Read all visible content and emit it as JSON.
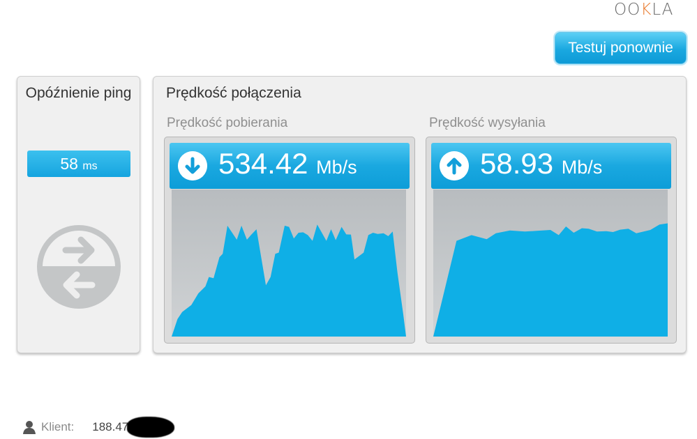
{
  "logo": {
    "text": "OOKLA"
  },
  "retest_button": "Testuj ponownie",
  "ping": {
    "title": "Opóźnienie ping",
    "value": "58",
    "unit": "ms"
  },
  "speed": {
    "title": "Prędkość połączenia",
    "download": {
      "label": "Prędkość pobierania",
      "value": "534.42",
      "unit": "Mb/s",
      "icon": "arrow-down-circle-icon",
      "graph_samples": [
        [
          0,
          0
        ],
        [
          2.5,
          11.9
        ],
        [
          4.5,
          16.7
        ],
        [
          8.4,
          21.4
        ],
        [
          11.4,
          29.4
        ],
        [
          14.4,
          34.1
        ],
        [
          15.9,
          40.5
        ],
        [
          17.9,
          39.7
        ],
        [
          20.4,
          54
        ],
        [
          21.8,
          56.3
        ],
        [
          23.8,
          75.4
        ],
        [
          27.8,
          65.9
        ],
        [
          29.8,
          75.4
        ],
        [
          32.1,
          65.9
        ],
        [
          33.8,
          69
        ],
        [
          36.2,
          73
        ],
        [
          40.2,
          34.9
        ],
        [
          42.2,
          40.5
        ],
        [
          44.2,
          56.3
        ],
        [
          45.7,
          57.1
        ],
        [
          48.2,
          75.4
        ],
        [
          50.1,
          74.6
        ],
        [
          52.1,
          66.7
        ],
        [
          54.1,
          70.6
        ],
        [
          56.1,
          70.9
        ],
        [
          58.1,
          69
        ],
        [
          60.1,
          65.1
        ],
        [
          62.1,
          76.2
        ],
        [
          66,
          65.1
        ],
        [
          68,
          73
        ],
        [
          70,
          65.6
        ],
        [
          72.5,
          74.6
        ],
        [
          74.5,
          69.5
        ],
        [
          76.5,
          69.4
        ],
        [
          78,
          52.4
        ],
        [
          81.9,
          57.1
        ],
        [
          83.9,
          69
        ],
        [
          85.9,
          70.6
        ],
        [
          87.9,
          69.8
        ],
        [
          90.4,
          70.3
        ],
        [
          92.4,
          68.3
        ],
        [
          94.3,
          71.4
        ],
        [
          96.3,
          43.7
        ],
        [
          98.8,
          15.1
        ],
        [
          100,
          0
        ]
      ]
    },
    "upload": {
      "label": "Prędkość wysyłania",
      "value": "58.93",
      "unit": "Mb/s",
      "icon": "arrow-up-circle-icon",
      "graph_samples": [
        [
          0,
          0
        ],
        [
          9.9,
          65.1
        ],
        [
          16.3,
          69
        ],
        [
          22.8,
          66.2
        ],
        [
          26.7,
          70.3
        ],
        [
          32.7,
          72.2
        ],
        [
          39.1,
          71.4
        ],
        [
          44.1,
          71.9
        ],
        [
          50,
          72.5
        ],
        [
          53.5,
          69
        ],
        [
          56.6,
          74.9
        ],
        [
          59.9,
          70.6
        ],
        [
          63.4,
          73.7
        ],
        [
          66.3,
          73.3
        ],
        [
          69.8,
          71.4
        ],
        [
          73.8,
          71.7
        ],
        [
          76.7,
          71.1
        ],
        [
          79.7,
          72.7
        ],
        [
          83.2,
          73.3
        ],
        [
          86.6,
          70.3
        ],
        [
          92.6,
          72.5
        ],
        [
          96.5,
          76.2
        ],
        [
          100,
          77
        ],
        [
          100,
          0
        ]
      ]
    }
  },
  "client": {
    "label": "Klient:",
    "ip": "188.47"
  },
  "colors": {
    "accent": "#1aa8e0",
    "graph_fill": "#0fafe6"
  }
}
